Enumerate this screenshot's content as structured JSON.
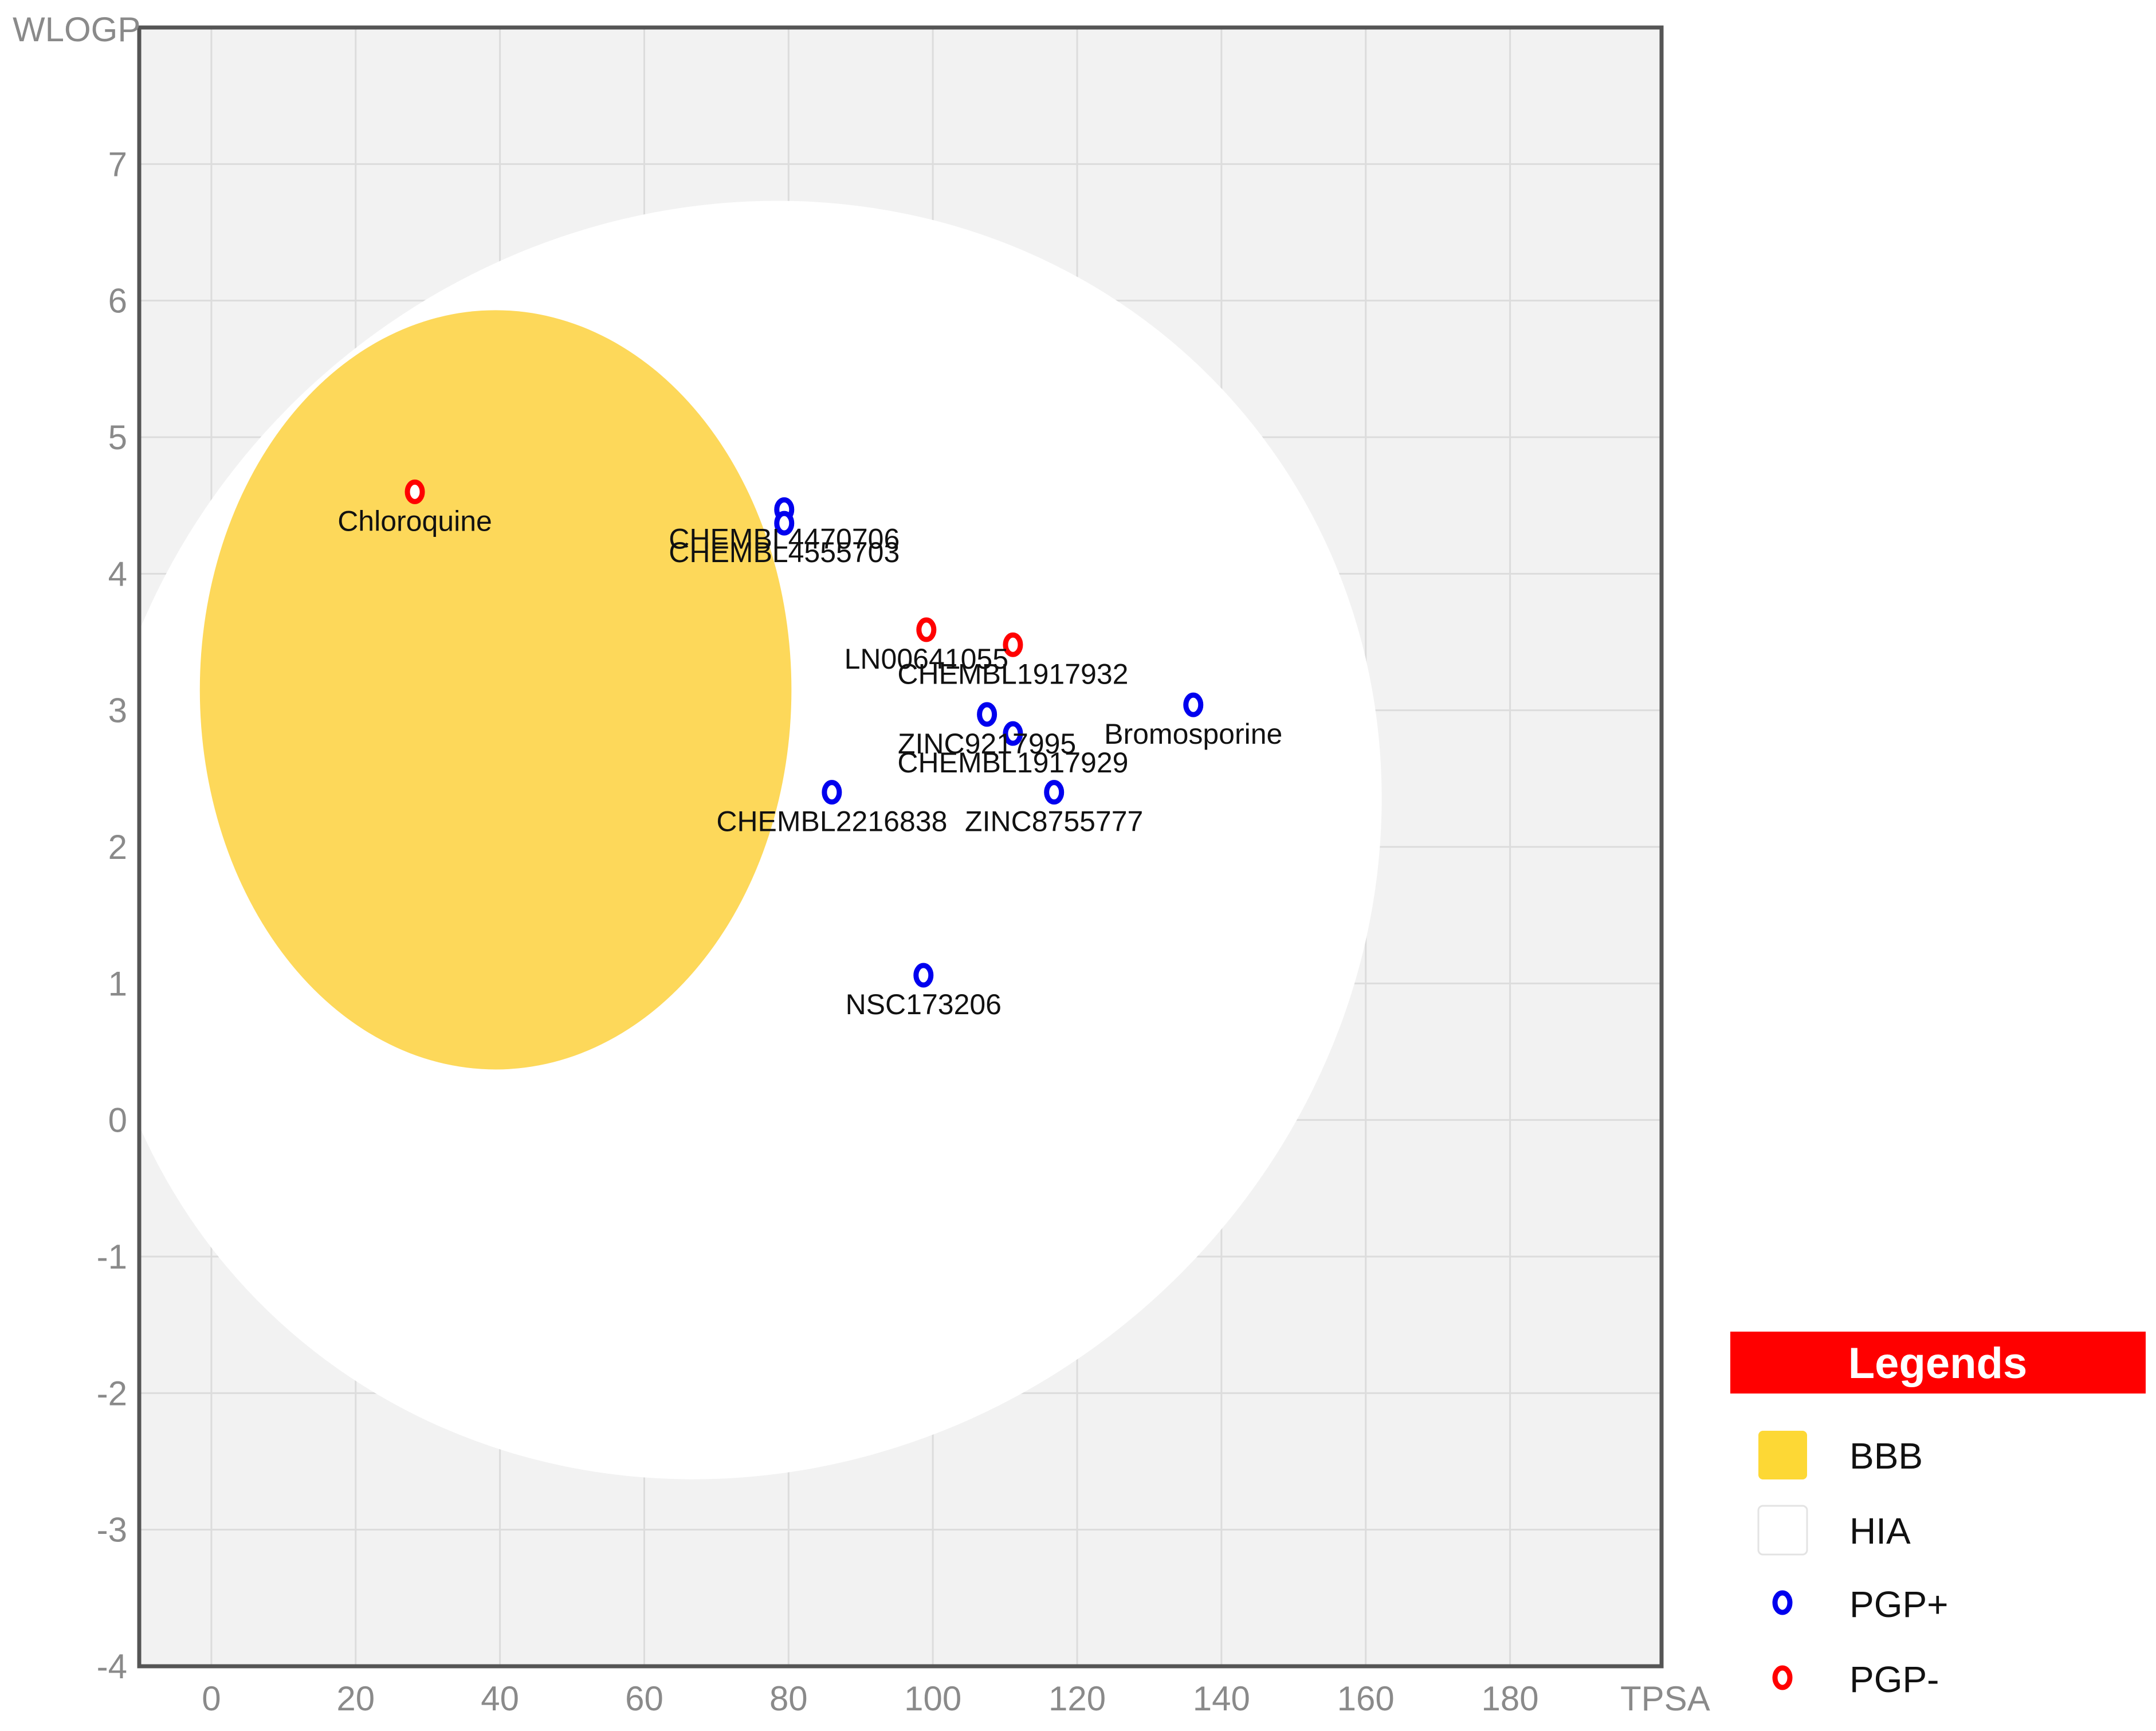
{
  "chart_data": {
    "type": "scatter",
    "title": "",
    "xlabel": "TPSA",
    "ylabel": "WLOGP",
    "xlim": [
      -10,
      201
    ],
    "ylim": [
      -4,
      8
    ],
    "xticks": [
      0,
      20,
      40,
      60,
      80,
      100,
      120,
      140,
      160,
      180
    ],
    "yticks": [
      -4,
      -3,
      -2,
      -1,
      0,
      1,
      2,
      3,
      4,
      5,
      6,
      7
    ],
    "grid": true,
    "regions": [
      {
        "name": "HIA",
        "color": "#ffffff",
        "cx": 72.6,
        "cy": 2.05,
        "rx": 92.0,
        "ry": 4.55,
        "rotation_deg": -40
      },
      {
        "name": "BBB",
        "color": "#fdd85a",
        "cx": 39.4,
        "cy": 3.15,
        "rx": 41.0,
        "ry": 2.78,
        "rotation_deg": 0
      }
    ],
    "series": [
      {
        "name": "PGP+",
        "color": "#0000ee",
        "points": [
          {
            "label": "CHEMBL4470706",
            "x": 79.4,
            "y": 4.47
          },
          {
            "label": "CHEMBL4555703",
            "x": 79.4,
            "y": 4.37
          },
          {
            "label": "ZINC9217995",
            "x": 107.5,
            "y": 2.97
          },
          {
            "label": "CHEMBL1917929",
            "x": 111.1,
            "y": 2.83
          },
          {
            "label": "Bromosporine",
            "x": 136.1,
            "y": 3.04
          },
          {
            "label": "CHEMBL2216838",
            "x": 86.0,
            "y": 2.4
          },
          {
            "label": "ZINC8755777",
            "x": 116.8,
            "y": 2.4
          },
          {
            "label": "NSC173206",
            "x": 98.7,
            "y": 1.06
          }
        ]
      },
      {
        "name": "PGP-",
        "color": "#ff0000",
        "points": [
          {
            "label": "Chloroquine",
            "x": 28.2,
            "y": 4.6
          },
          {
            "label": "LN00641055",
            "x": 99.1,
            "y": 3.59
          },
          {
            "label": "CHEMBL1917932",
            "x": 111.1,
            "y": 3.48
          }
        ]
      }
    ],
    "legend": {
      "title": "Legends",
      "title_color": "#ff0000",
      "position": "bottom-right",
      "items": [
        {
          "label": "BBB",
          "kind": "area",
          "color": "#fdd835"
        },
        {
          "label": "HIA",
          "kind": "area",
          "color": "#ffffff"
        },
        {
          "label": "PGP+",
          "kind": "marker",
          "color": "#0000ee"
        },
        {
          "label": "PGP-",
          "kind": "marker",
          "color": "#ff0000"
        }
      ]
    }
  }
}
